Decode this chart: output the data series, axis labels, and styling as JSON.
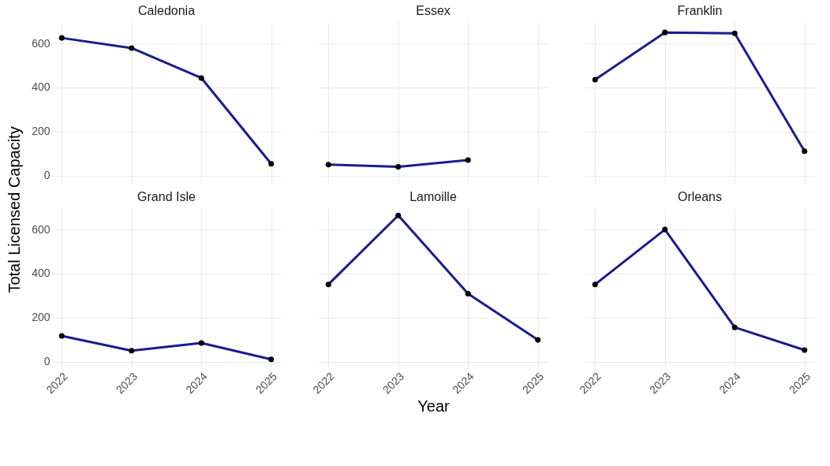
{
  "chart_data": [
    {
      "type": "line",
      "title": "Caledonia",
      "ylabel": "Total Licensed Capacity",
      "x": [
        2022,
        2023,
        2024,
        2025
      ],
      "values": [
        625,
        579,
        443,
        54
      ],
      "color": "#1c1c8c",
      "marker": "circle",
      "grid": true,
      "xlim": [
        2021.85,
        2025.15
      ],
      "ylim": [
        -33,
        697
      ],
      "xticks": [
        2022,
        2023,
        2024,
        2025
      ],
      "yticks": [
        0,
        200,
        400,
        600
      ],
      "tick_labels": "y"
    },
    {
      "type": "line",
      "title": "Essex",
      "x": [
        2022,
        2023,
        2024
      ],
      "values": [
        50,
        40,
        71
      ],
      "color": "#1c1c8c",
      "marker": "circle",
      "grid": true,
      "xlim": [
        2021.85,
        2025.15
      ],
      "ylim": [
        -33,
        697
      ],
      "xticks": [
        2022,
        2023,
        2024,
        2025
      ],
      "yticks": [
        0,
        200,
        400,
        600
      ],
      "tick_labels": false
    },
    {
      "type": "line",
      "title": "Franklin",
      "x": [
        2022,
        2023,
        2024,
        2025
      ],
      "values": [
        436,
        650,
        646,
        111
      ],
      "color": "#1c1c8c",
      "marker": "circle",
      "grid": true,
      "xlim": [
        2021.85,
        2025.15
      ],
      "ylim": [
        -33,
        697
      ],
      "xticks": [
        2022,
        2023,
        2024,
        2025
      ],
      "yticks": [
        0,
        200,
        400,
        600
      ],
      "tick_labels": false
    },
    {
      "type": "line",
      "title": "Grand Isle",
      "x": [
        2022,
        2023,
        2024,
        2025
      ],
      "values": [
        117,
        50,
        85,
        11
      ],
      "color": "#1c1c8c",
      "marker": "circle",
      "grid": true,
      "xlim": [
        2021.85,
        2025.15
      ],
      "ylim": [
        -33,
        697
      ],
      "xticks": [
        2022,
        2023,
        2024,
        2025
      ],
      "yticks": [
        0,
        200,
        400,
        600
      ]
    },
    {
      "type": "line",
      "title": "Lamoille",
      "xlabel": "Year",
      "x": [
        2022,
        2023,
        2024,
        2025
      ],
      "values": [
        351,
        664,
        309,
        99
      ],
      "color": "#1c1c8c",
      "marker": "circle",
      "grid": true,
      "xlim": [
        2021.85,
        2025.15
      ],
      "ylim": [
        -33,
        697
      ],
      "xticks": [
        2022,
        2023,
        2024,
        2025
      ],
      "yticks": [
        0,
        200,
        400,
        600
      ],
      "tick_labels": "x"
    },
    {
      "type": "line",
      "title": "Orleans",
      "x": [
        2022,
        2023,
        2024,
        2025
      ],
      "values": [
        351,
        600,
        156,
        53
      ],
      "color": "#1c1c8c",
      "marker": "circle",
      "grid": true,
      "xlim": [
        2021.85,
        2025.15
      ],
      "ylim": [
        -33,
        697
      ],
      "xticks": [
        2022,
        2023,
        2024,
        2025
      ],
      "yticks": [
        0,
        200,
        400,
        600
      ],
      "tick_labels": "x"
    }
  ]
}
